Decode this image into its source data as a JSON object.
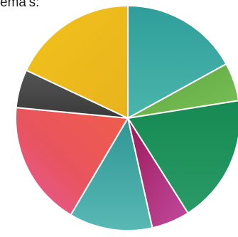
{
  "caption": "ema's:",
  "chart_data": {
    "type": "pie",
    "title": "",
    "slices": [
      {
        "value": 17.0,
        "color": "#3aa8a0"
      },
      {
        "value": 5.5,
        "color": "#6ab04c"
      },
      {
        "value": 18.5,
        "color": "#1e8e5c"
      },
      {
        "value": 5.5,
        "color": "#b02a7a"
      },
      {
        "value": 12.0,
        "color": "#3fa8a6"
      },
      {
        "value": 18.0,
        "color": "#ea5a58"
      },
      {
        "value": 5.5,
        "color": "#4a4a4a"
      },
      {
        "value": 18.0,
        "color": "#eebb1e"
      }
    ],
    "start_angle_deg": 0,
    "direction": "clockwise",
    "legend": "none",
    "data_labels": "none"
  }
}
